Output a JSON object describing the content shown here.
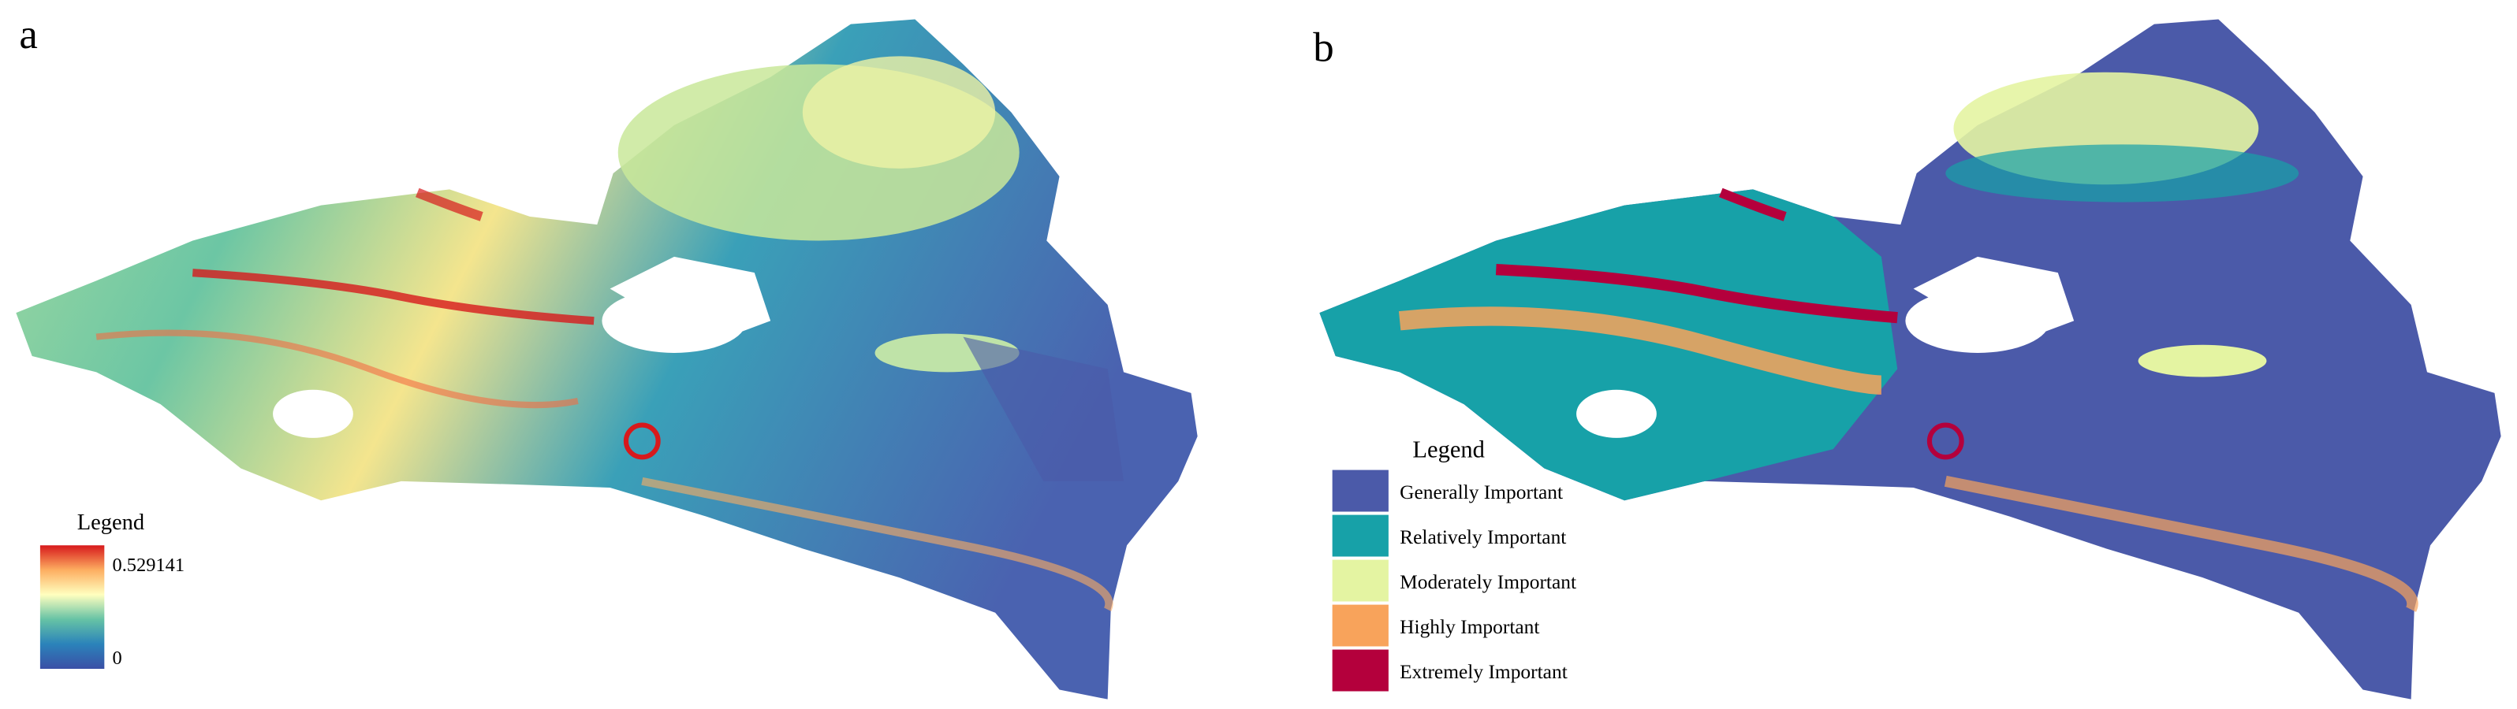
{
  "panels": [
    {
      "label": "a",
      "legend": {
        "title": "Legend",
        "max": 0.529141,
        "min": 0,
        "ramp": [
          "#d7191c",
          "#fdae61",
          "#ffffbf",
          "#66c2a5",
          "#2b83ba",
          "#3a4fa6"
        ]
      }
    },
    {
      "label": "b",
      "legend": {
        "title": "Legend",
        "items": [
          {
            "name": "Generally Important",
            "color": "#4b5aa9"
          },
          {
            "name": "Relatively Important",
            "color": "#17a1a8"
          },
          {
            "name": "Moderately Important",
            "color": "#e4f4a2"
          },
          {
            "name": "Highly Important",
            "color": "#f8a35b"
          },
          {
            "name": "Extremely Important",
            "color": "#b4003c"
          }
        ]
      }
    }
  ]
}
